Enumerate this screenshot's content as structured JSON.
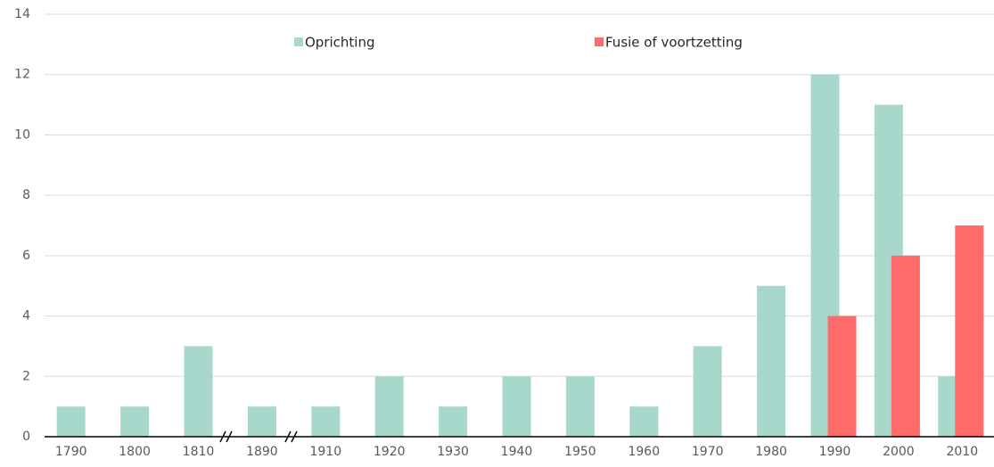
{
  "chart_data": {
    "type": "bar",
    "categories": [
      "1790",
      "1800",
      "1810",
      "1890",
      "1910",
      "1920",
      "1930",
      "1940",
      "1950",
      "1960",
      "1970",
      "1980",
      "1990",
      "2000",
      "2010"
    ],
    "series": [
      {
        "name": "Oprichting",
        "color": "#a8d8cc",
        "values": [
          1,
          1,
          3,
          1,
          1,
          2,
          1,
          2,
          2,
          1,
          3,
          5,
          12,
          11,
          2
        ]
      },
      {
        "name": "Fusie of voortzetting",
        "color": "#ff6b6b",
        "values": [
          null,
          null,
          null,
          null,
          null,
          null,
          null,
          null,
          null,
          null,
          null,
          null,
          4,
          6,
          7
        ]
      }
    ],
    "ylim": [
      0,
      14
    ],
    "yticks": [
      0,
      2,
      4,
      6,
      8,
      10,
      12,
      14
    ],
    "grid": true,
    "legend": "top"
  }
}
